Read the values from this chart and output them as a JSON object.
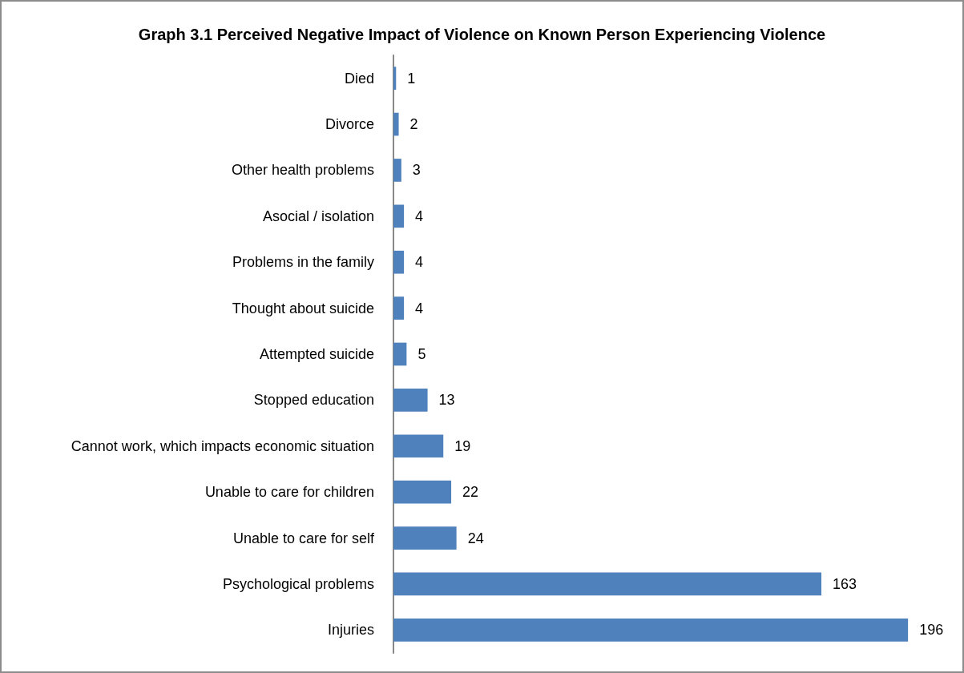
{
  "chart_data": {
    "type": "bar",
    "orientation": "horizontal",
    "title": "Graph 3.1 Perceived Negative Impact of Violence on Known Person Experiencing Violence",
    "categories": [
      "Died",
      "Divorce",
      "Other health problems",
      "Asocial / isolation",
      "Problems in the family",
      "Thought about suicide",
      "Attempted suicide",
      "Stopped education",
      "Cannot work, which impacts economic situation",
      "Unable to care for children",
      "Unable to care for self",
      "Psychological problems",
      "Injuries"
    ],
    "values": [
      1,
      2,
      3,
      4,
      4,
      4,
      5,
      13,
      19,
      22,
      24,
      163,
      196
    ],
    "color": "#4f81bd",
    "data_labels": true
  }
}
